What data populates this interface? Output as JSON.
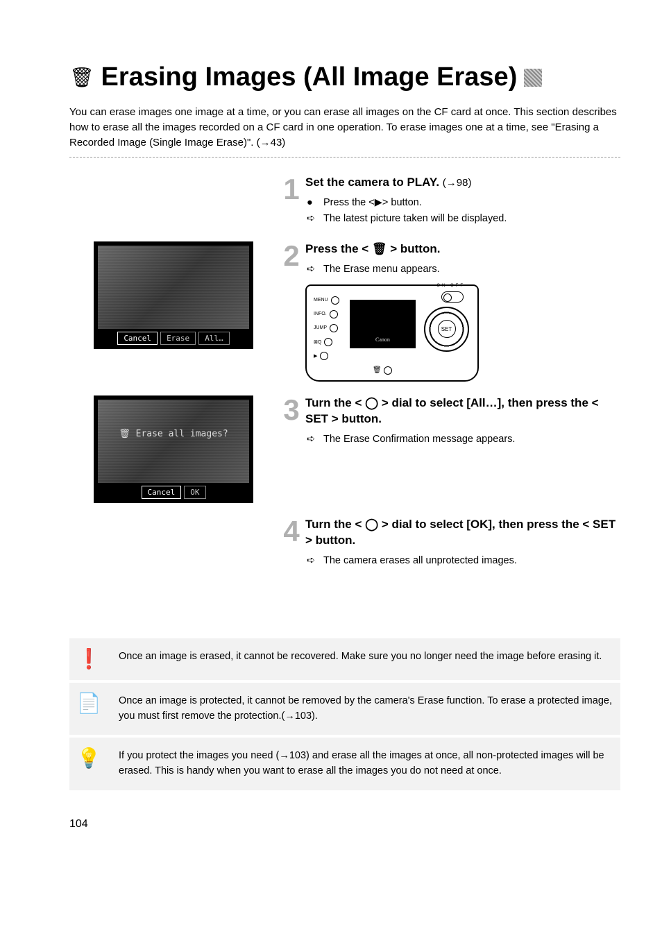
{
  "title": {
    "icon": "🗑",
    "text": "Erasing Images (All Image Erase)"
  },
  "intro": "You can erase images one image at a time, or you can erase all images on the CF card at once. This section describes how to erase all the images recorded on a CF card in one operation. To erase images one at a time, see \"Erasing a Recorded Image (Single Image Erase)\". (→43)",
  "steps": [
    {
      "num": "1",
      "heading_prefix": "Set the camera to PLAY.",
      "heading_suffix": "(→98)",
      "lines": [
        {
          "sym": "●",
          "text": "Press the <▶> button."
        },
        {
          "sym": "➪",
          "text": "The latest picture taken will be displayed."
        }
      ]
    },
    {
      "num": "2",
      "heading_prefix": "Press the < 🗑 > button.",
      "heading_suffix": "",
      "lines": [
        {
          "sym": "➪",
          "text": "The Erase menu appears."
        }
      ]
    },
    {
      "num": "3",
      "heading_prefix": "Turn the < ◯ > dial to select [All…], then press the < SET > button.",
      "heading_suffix": "",
      "lines": [
        {
          "sym": "➪",
          "text": "The Erase Confirmation message appears."
        }
      ]
    },
    {
      "num": "4",
      "heading_prefix": "Turn the < ◯ > dial to select [OK], then press the < SET > button.",
      "heading_suffix": "",
      "lines": [
        {
          "sym": "➪",
          "text": "The camera erases all unprotected images."
        }
      ]
    }
  ],
  "fig1": {
    "buttons": [
      "Cancel",
      "Erase",
      "All…"
    ],
    "selected": 0
  },
  "fig2": {
    "overlay": "🗑 Erase all images?",
    "buttons": [
      "Cancel",
      "OK"
    ],
    "selected": 0
  },
  "camera": {
    "left_labels": [
      "MENU",
      "INFO.",
      "JUMP",
      "⊠Q",
      "▶"
    ],
    "screen_brand": "Canon",
    "set_label": "SET",
    "onoff": "ON OFF"
  },
  "notes": [
    {
      "icon": "warning",
      "text": "Once an image is erased, it cannot be recovered. Make sure you no longer need the image before erasing it."
    },
    {
      "icon": "note",
      "text": "Once an image is protected, it cannot be removed by the camera's Erase function. To erase a protected image, you must first remove the protection.(→103)."
    },
    {
      "icon": "tip",
      "text": "If you protect the images you need (→103) and erase all the images at once, all non-protected images will be erased. This is handy when you want to erase all the images you do not need at once."
    }
  ],
  "note_icons": {
    "warning": "❗",
    "note": "📄",
    "tip": "💡"
  },
  "page_number": "104"
}
